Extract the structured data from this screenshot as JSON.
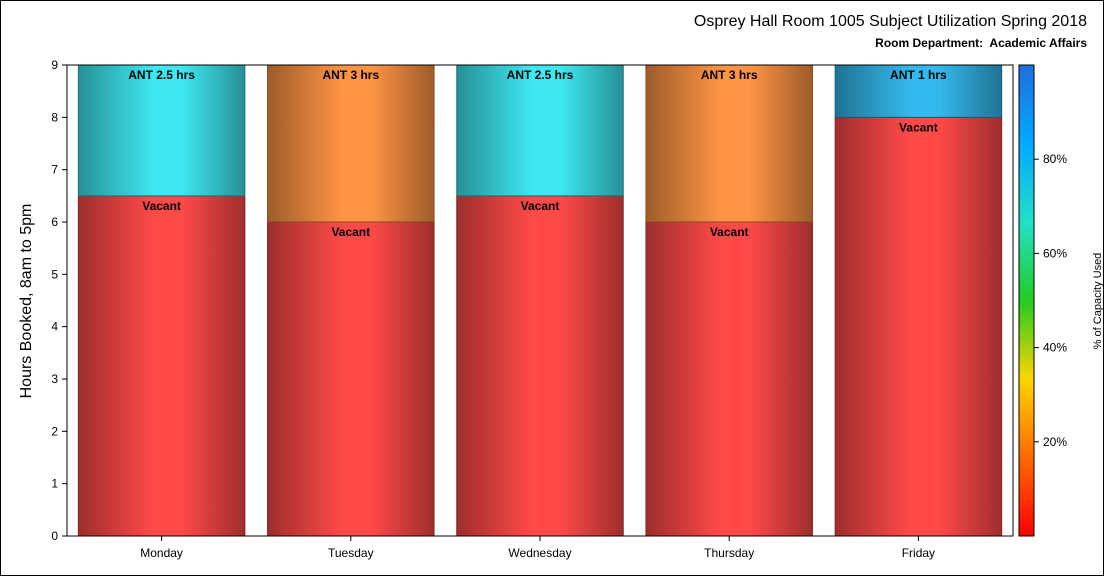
{
  "chart_data": {
    "type": "bar",
    "stacked": true,
    "title": "Osprey Hall Room 1005 Subject Utilization Spring 2018",
    "subtitle": "Room Department:  Academic Affairs",
    "ylabel": "Hours Booked, 8am to 5pm",
    "xlabel": "",
    "ylim": [
      0,
      9
    ],
    "yticks": [
      "0",
      "1",
      "2",
      "3",
      "4",
      "5",
      "6",
      "7",
      "8",
      "9"
    ],
    "categories": [
      "Monday",
      "Tuesday",
      "Wednesday",
      "Thursday",
      "Friday"
    ],
    "series": [
      {
        "name": "Vacant",
        "values": [
          6.5,
          6,
          6.5,
          6,
          8
        ],
        "labels": [
          "Vacant",
          "Vacant",
          "Vacant",
          "Vacant",
          "Vacant"
        ]
      },
      {
        "name": "ANT",
        "values": [
          2.5,
          3,
          2.5,
          3,
          1
        ],
        "labels": [
          "ANT 2.5 hrs",
          "ANT 3 hrs",
          "ANT 2.5 hrs",
          "ANT 3 hrs",
          "ANT 1 hrs"
        ]
      }
    ],
    "colors": {
      "vacant": "#ff4a48",
      "ant_2_5": "#3ee8f2",
      "ant_3": "#ff9444",
      "ant_1": "#34b9ee"
    },
    "colorbar": {
      "label": "% of Capacity Used",
      "ticks": [
        "20%",
        "40%",
        "60%",
        "80%"
      ],
      "tick_values": [
        20,
        40,
        60,
        80
      ],
      "range": [
        0,
        100
      ],
      "stops": [
        "#ff0000",
        "#ff6a00",
        "#ffd400",
        "#22cc22",
        "#22e0c8",
        "#00aaff",
        "#1f6fe0"
      ]
    },
    "grid": false,
    "legend": "colorbar-right"
  }
}
